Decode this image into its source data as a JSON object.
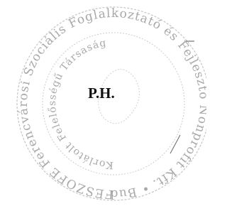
{
  "stamp": {
    "outer_text": "FESZOFE Ferencvárosi Szociális Foglalkoztató és Fejlesztő Nonprofit Kft. • Budapest •",
    "inner_text": "Korlátolt Felelősségű Társaság",
    "center_text": "P.H."
  }
}
